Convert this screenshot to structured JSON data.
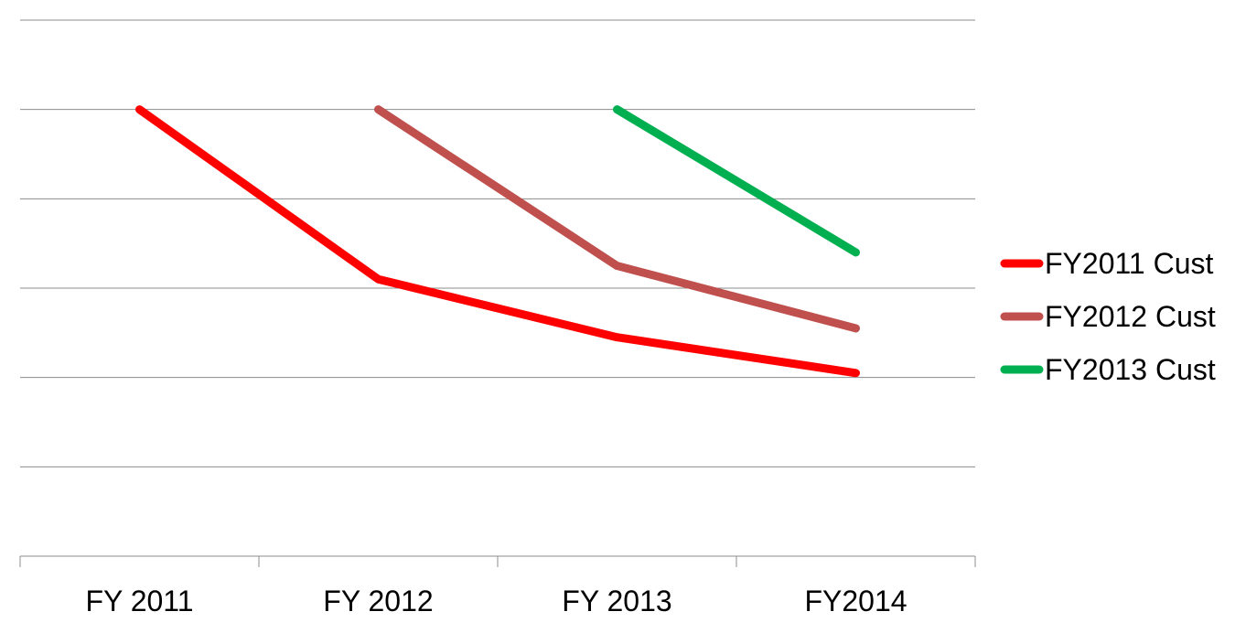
{
  "chart_data": {
    "type": "line",
    "title": "",
    "xlabel": "",
    "ylabel": "",
    "categories": [
      "FY 2011",
      "FY 2012",
      "FY 2013",
      "FY2014"
    ],
    "ylim": [
      0,
      6
    ],
    "y_tick_step": 1,
    "y_tick_labels_shown": false,
    "grid": true,
    "legend_position": "right",
    "series": [
      {
        "name": "FY2011 Cust",
        "color": "#ff0000",
        "values": [
          5,
          3.1,
          2.45,
          2.05
        ]
      },
      {
        "name": "FY2012 Cust",
        "color": "#c0504d",
        "values": [
          null,
          5,
          3.25,
          2.55
        ]
      },
      {
        "name": "FY2013 Cust",
        "color": "#00b050",
        "values": [
          null,
          null,
          5,
          3.4
        ]
      }
    ]
  }
}
